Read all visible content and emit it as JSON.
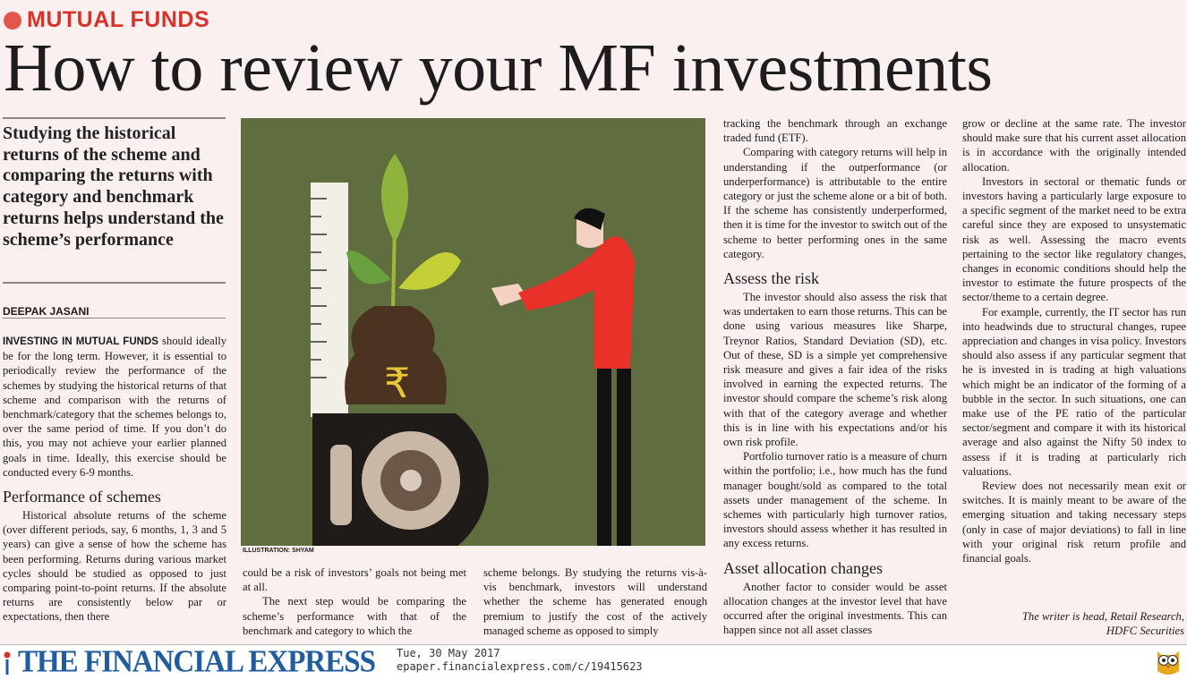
{
  "kicker": "MUTUAL FUNDS",
  "headline": "How to review your MF investments",
  "deck": "Studying the historical returns of the scheme and comparing the returns with category and benchmark returns helps understand the scheme’s performance",
  "byline": "DEEPAK JASANI",
  "credit": "ILLUSTRATION: SHYAM",
  "col1": {
    "lead": "INVESTING IN MUTUAL FUNDS",
    "p1": " should ideally be for the long term. However, it is essential to periodically review the performance of the schemes by studying the historical returns of that scheme and comparison with the returns of benchmark/category that the schemes belongs to, over the same period of time. If you don’t do this, you may not achieve your earlier planned goals in time. Ideally, this exercise should be conducted every 6-9 months.",
    "h1": "Performance of schemes",
    "p2": "Historical absolute returns of the scheme (over different periods, say, 6 months, 1, 3 and 5 years) can give a sense of how the scheme has been performing. Returns during various market cycles should be studied as opposed to just comparing point-to-point returns. If the absolute returns are consistently below par or expectations, then there"
  },
  "col2": {
    "p1": "could be a risk of investors’ goals not being met at all.",
    "p2": "The next step would be comparing the scheme’s performance with that of the benchmark and category to which the"
  },
  "col3": {
    "p1": "scheme belongs. By studying the returns vis-à-vis benchmark, investors will understand whether the scheme has generated enough premium to justify the cost of the actively managed scheme as opposed to simply"
  },
  "col4": {
    "p1": "tracking the benchmark through an exchange traded fund (ETF).",
    "p2": "Comparing with category returns will help in understanding if the outperformance (or underperformance) is attributable to the entire category or just the scheme alone or a bit of both. If the scheme has consistently underperformed, then it is time for the investor to switch out of the scheme to better performing ones in the same category.",
    "h1": "Assess the risk",
    "p3": "The investor should also assess the risk that was undertaken to earn those returns. This can be done using various measures like Sharpe, Treynor Ratios, Standard Deviation (SD), etc. Out of these, SD is a simple yet comprehensive risk measure and gives a fair idea of the risks involved in earning the expected returns. The investor should compare the scheme’s risk along with that of the category average and whether this is in line with his expectations and/or his own risk profile.",
    "p4": "Portfolio turnover ratio is a measure of churn within the portfolio; i.e., how much has the fund manager bought/sold as compared to the total assets under management of the scheme. In schemes with particularly high turnover ratios, investors should assess whether it has resulted in any excess returns.",
    "h2": "Asset allocation changes",
    "p5": "Another factor to consider would be asset allocation changes at the investor level that have occurred after the original investments. This can happen since not all asset classes"
  },
  "col5": {
    "p1": "grow or decline at the same rate. The investor should make sure that his current asset allocation is in accordance with the originally intended allocation.",
    "p2": "Investors in sectoral or thematic funds or investors having a particularly large exposure to a specific segment of the market need to be extra careful since they are exposed to unsystematic risk as well. Assessing the macro events pertaining to the sector like regulatory changes, changes in economic conditions should help the investor to estimate the future prospects of the sector/theme to a certain degree.",
    "p3": "For example, currently, the IT sector has run into headwinds due to structural changes, rupee appreciation and changes in visa policy. Investors should also assess if any particular segment that he is invested in is trading at high valuations which might be an indicator of the forming of a bubble in the sector. In such situations, one can make use of the PE ratio of the particular sector/segment and compare it with its historical average and also against the Nifty 50 index to assess if it is trading at particularly rich valuations.",
    "p4": "Review does not necessarily mean exit or switches. It is mainly meant to be aware of the emerging situation and taking necessary steps (only in case of major deviations) to fall in line with your original risk return profile and financial goals.",
    "writer1": "The writer is head, Retail Research,",
    "writer2": "HDFC Securities"
  },
  "footer": {
    "logo": "THE FINANCIAL EXPRESS",
    "date": "Tue, 30 May 2017",
    "url": "epaper.financialexpress.com/c/19415623"
  },
  "colors": {
    "kicker": "#d8332b",
    "logo": "#1f5d9f",
    "illustration_bg": "#5f6d3f",
    "page_bg": "#fbf0f0"
  }
}
